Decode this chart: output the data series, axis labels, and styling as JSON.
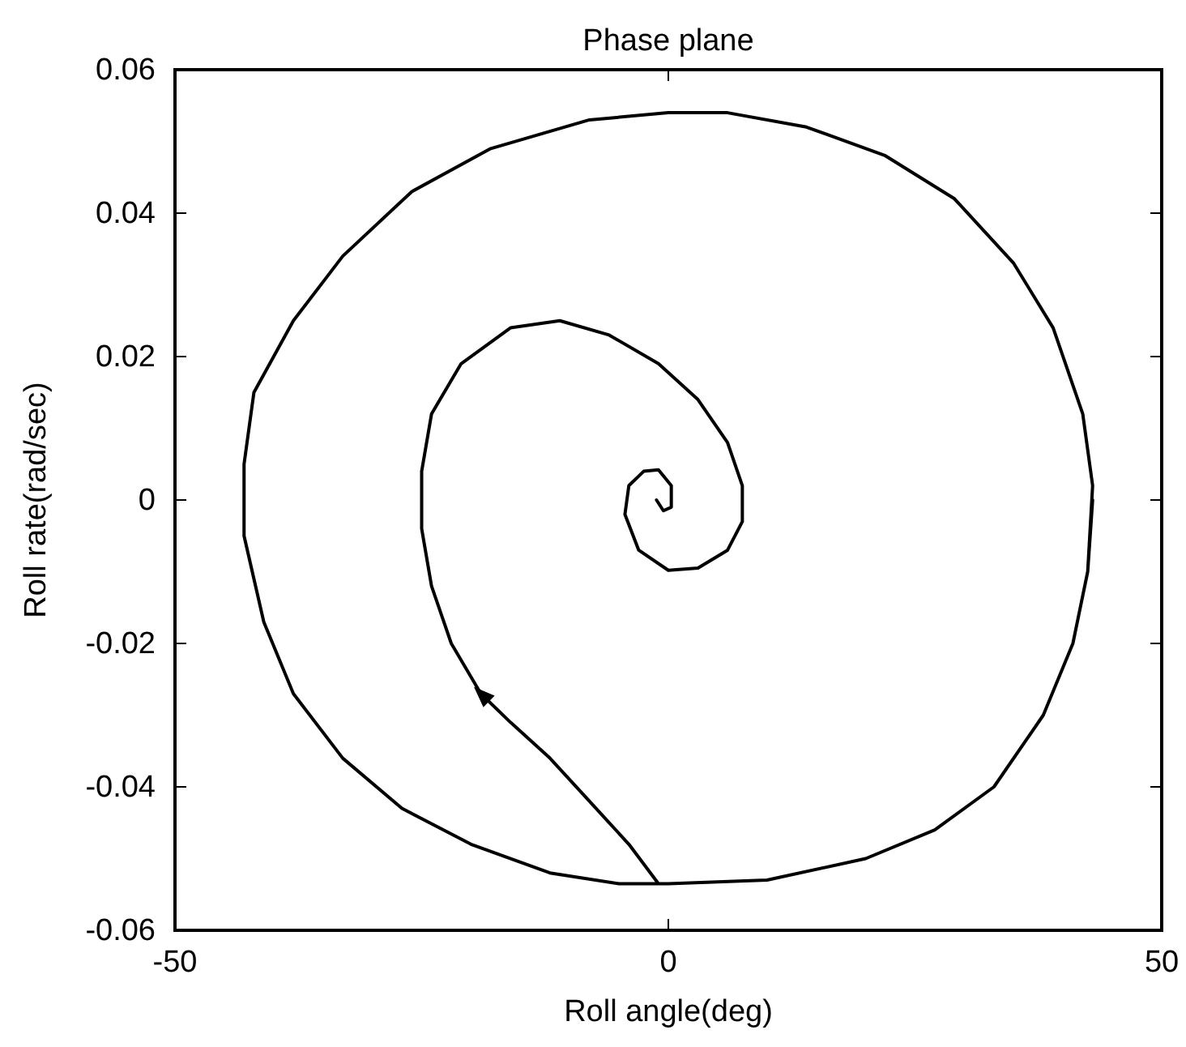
{
  "chart_data": {
    "type": "line",
    "title": "Phase plane",
    "xlabel": "Roll angle(deg)",
    "ylabel": "Roll rate(rad/sec)",
    "xlim": [
      -50,
      50
    ],
    "xticks": [
      -50,
      0,
      50
    ],
    "ylim": [
      -0.06,
      0.06
    ],
    "yticks": [
      -0.06,
      -0.04,
      -0.02,
      0,
      0.02,
      0.04,
      0.06
    ],
    "marker": "none",
    "line_style": "solid",
    "series": [
      {
        "color": "#000000",
        "x": [
          43,
          42.5,
          41,
          38,
          33,
          27,
          20,
          10,
          0,
          -5,
          -12,
          -20,
          -27,
          -33,
          -38,
          -41,
          -43,
          -43,
          -42,
          -38,
          -33,
          -26,
          -18,
          -8,
          0,
          6,
          14,
          22,
          29,
          35,
          39,
          42,
          43,
          42.5,
          41,
          38,
          33,
          27,
          20,
          10,
          0,
          -1,
          -4,
          -8,
          -12,
          -16,
          -19,
          -22,
          -24,
          -25,
          -25,
          -24,
          -21,
          -16,
          -11,
          -6,
          -1,
          3,
          6,
          7.5,
          7.5,
          6,
          3,
          0,
          -3,
          -4.4,
          -4,
          -2.5,
          -1,
          0.3,
          0.3,
          -0.5,
          -1.2
        ],
        "values": [
          0,
          -0.01,
          -0.02,
          -0.03,
          -0.04,
          -0.046,
          -0.05,
          -0.053,
          -0.0535,
          -0.0535,
          -0.052,
          -0.048,
          -0.043,
          -0.036,
          -0.027,
          -0.017,
          -0.005,
          0.005,
          0.015,
          0.025,
          0.034,
          0.043,
          0.049,
          0.053,
          0.054,
          0.054,
          0.052,
          0.048,
          0.042,
          0.033,
          0.024,
          0.012,
          0.002,
          -0.01,
          -0.02,
          -0.03,
          -0.04,
          -0.046,
          -0.05,
          -0.053,
          -0.0535,
          -0.0535,
          -0.048,
          -0.042,
          -0.036,
          -0.031,
          -0.027,
          -0.02,
          -0.012,
          -0.004,
          0.004,
          0.012,
          0.019,
          0.024,
          0.025,
          0.023,
          0.019,
          0.014,
          0.008,
          0.002,
          -0.003,
          -0.007,
          -0.0095,
          -0.0098,
          -0.007,
          -0.002,
          0.002,
          0.004,
          0.0042,
          0.002,
          -0.001,
          -0.0015,
          0
        ]
      }
    ]
  }
}
